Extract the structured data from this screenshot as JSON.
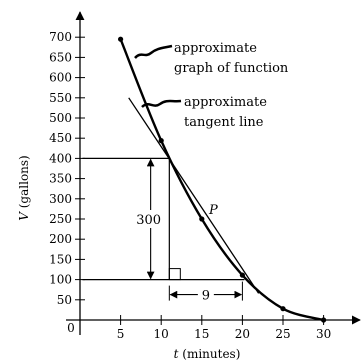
{
  "chart_data": {
    "type": "line",
    "title": "",
    "xlabel": {
      "var": "t",
      "unit": "(minutes)"
    },
    "ylabel": {
      "var": "V",
      "unit": "(gallons)"
    },
    "xlim": [
      0,
      34
    ],
    "ylim": [
      0,
      720
    ],
    "x_ticks": [
      5,
      10,
      15,
      20,
      25,
      30
    ],
    "y_ticks": [
      50,
      100,
      150,
      200,
      250,
      300,
      350,
      400,
      450,
      500,
      550,
      600,
      650,
      700
    ],
    "origin_label": "0",
    "grid": false,
    "series": [
      {
        "role": "function-graph",
        "points": [
          [
            5,
            695
          ],
          [
            10,
            444
          ],
          [
            15,
            250
          ],
          [
            20,
            111
          ],
          [
            25,
            28
          ],
          [
            30,
            0
          ]
        ]
      },
      {
        "role": "tangent-line",
        "points": [
          [
            6,
            550
          ],
          [
            22,
            66
          ]
        ]
      }
    ],
    "point_P": {
      "label": "P",
      "x": 15,
      "y": 250
    },
    "slope_triangle": {
      "top_y": 400,
      "bottom_y": 100,
      "run_start_x": 11,
      "run_end_x": 20,
      "rise_label": "300",
      "run_label": "9"
    },
    "annotations": {
      "function_label": [
        "approximate",
        "graph of function"
      ],
      "tangent_label": [
        "approximate",
        "tangent line"
      ]
    }
  }
}
